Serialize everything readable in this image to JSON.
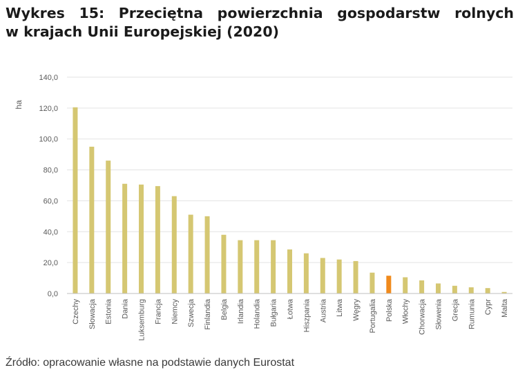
{
  "header": {
    "title_line1": "Wykres 15: Przeciętna powierzchnia gospodarstw rolnych",
    "title_line2": "w krajach Unii Europejskiej (2020)"
  },
  "footer": {
    "source": "Źródło: opracowanie własne na podstawie danych Eurostat"
  },
  "colors": {
    "bar": "#d5c772",
    "highlight": "#f08a1c",
    "grid": "#e3e3e3",
    "axis": "#bfbfbf"
  },
  "chart_data": {
    "type": "bar",
    "title": "",
    "xlabel": "",
    "ylabel": "ha",
    "ylim": [
      0,
      140
    ],
    "yticks": [
      0,
      20,
      40,
      60,
      80,
      100,
      120,
      140
    ],
    "ytick_labels": [
      "0,0",
      "20,0",
      "40,0",
      "60,0",
      "80,0",
      "100,0",
      "120,0",
      "140,0"
    ],
    "grid": true,
    "legend": "none",
    "highlight_category": "Polska",
    "categories": [
      "Czechy",
      "Słowacja",
      "Estonia",
      "Dania",
      "Luksemburg",
      "Francja",
      "Niemcy",
      "Szwecja",
      "Finlandia",
      "Belgia",
      "Irlandia",
      "Holandia",
      "Bułgaria",
      "Łotwa",
      "Hiszpania",
      "Austria",
      "Litwa",
      "Węgry",
      "Portugalia",
      "Polska",
      "Włochy",
      "Chorwacja",
      "Słowenia",
      "Grecja",
      "Rumunia",
      "Cypr",
      "Malta"
    ],
    "values": [
      120.5,
      95.0,
      86.0,
      71.0,
      70.5,
      69.5,
      63.0,
      51.0,
      50.0,
      38.0,
      34.5,
      34.5,
      34.5,
      28.5,
      26.0,
      23.0,
      22.0,
      21.0,
      13.5,
      11.5,
      10.5,
      8.5,
      6.5,
      5.0,
      4.0,
      3.5,
      1.0
    ]
  }
}
